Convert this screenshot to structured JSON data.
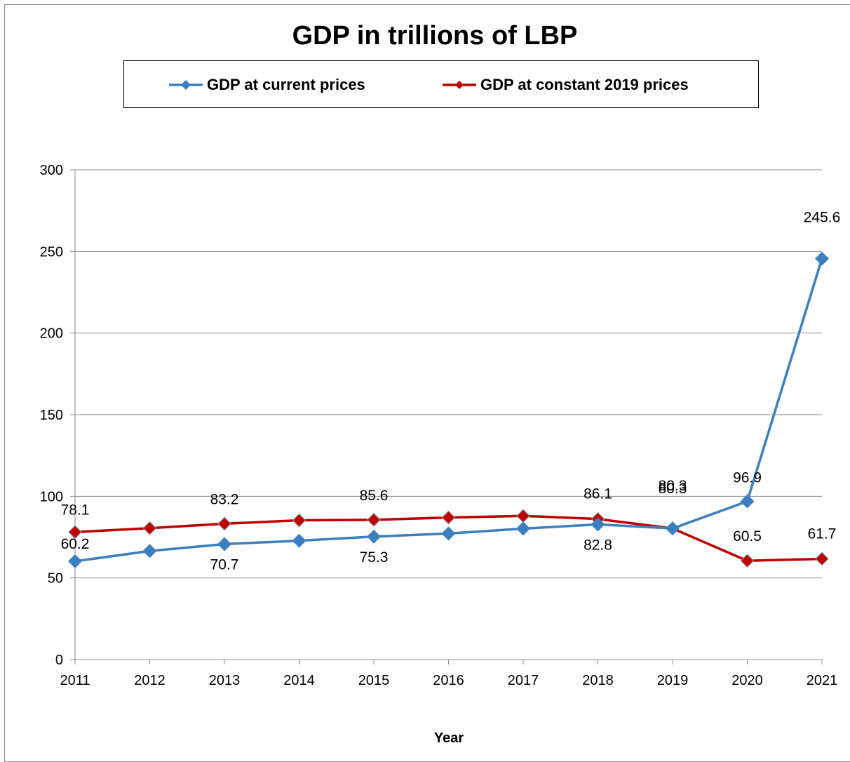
{
  "chart_data": {
    "type": "line",
    "title": "GDP in trillions of LBP",
    "xlabel": "Year",
    "ylabel": "",
    "x": [
      "2011",
      "2012",
      "2013",
      "2014",
      "2015",
      "2016",
      "2017",
      "2018",
      "2019",
      "2020",
      "2021"
    ],
    "ylim": [
      0,
      300
    ],
    "yticks": [
      0,
      50,
      100,
      150,
      200,
      250,
      300
    ],
    "grid": true,
    "legend": "top",
    "series": [
      {
        "name": "GDP at current prices",
        "color": "#3c7fc1",
        "marker": "diamond",
        "values": [
          60.2,
          66.5,
          70.7,
          72.8,
          75.3,
          77.2,
          80.2,
          82.8,
          80.3,
          96.9,
          245.6
        ],
        "labels": [
          "60.2",
          "",
          "70.7",
          "",
          "75.3",
          "",
          "",
          "82.8",
          "80.3",
          "96.9",
          "245.6"
        ]
      },
      {
        "name": "GDP at constant 2019 prices",
        "color": "#c00000",
        "marker": "diamond",
        "values": [
          78.1,
          80.5,
          83.2,
          85.3,
          85.6,
          87.0,
          88.0,
          86.1,
          80.3,
          60.5,
          61.7
        ],
        "labels": [
          "78.1",
          "",
          "83.2",
          "",
          "85.6",
          "",
          "",
          "86.1",
          "80.3",
          "60.5",
          "61.7"
        ]
      }
    ]
  }
}
